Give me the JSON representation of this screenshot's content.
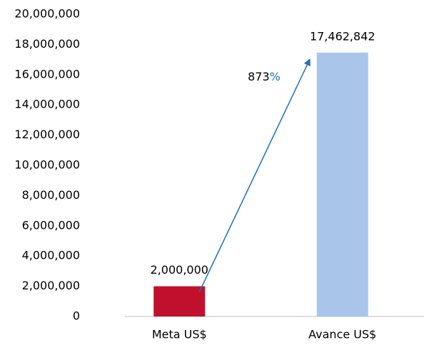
{
  "chart_data": {
    "type": "bar",
    "categories": [
      "Meta US$",
      "Avance US$"
    ],
    "values": [
      2000000,
      17462842
    ],
    "value_labels": [
      "2,000,000",
      "17,462,842"
    ],
    "colors": [
      "#c0102e",
      "#a9c6ea"
    ],
    "ylim": [
      0,
      20000000
    ],
    "yticks": [
      0,
      {
        "value": 2000000,
        "label": "2,000,000"
      },
      {
        "value": 4000000,
        "label": "4,000,000"
      },
      {
        "value": 6000000,
        "label": "6,000,000"
      },
      {
        "value": 8000000,
        "label": "8,000,000"
      },
      {
        "value": 10000000,
        "label": "10,000,000"
      },
      {
        "value": 12000000,
        "label": "12,000,000"
      },
      {
        "value": 14000000,
        "label": "14,000,000"
      },
      {
        "value": 16000000,
        "label": "16,000,000"
      },
      {
        "value": 18000000,
        "label": "18,000,000"
      },
      {
        "value": 20000000,
        "label": "20,000,000"
      }
    ],
    "grid": false,
    "annotation": [
      "873",
      "%"
    ],
    "annotation_color": "#1f6fb5"
  }
}
